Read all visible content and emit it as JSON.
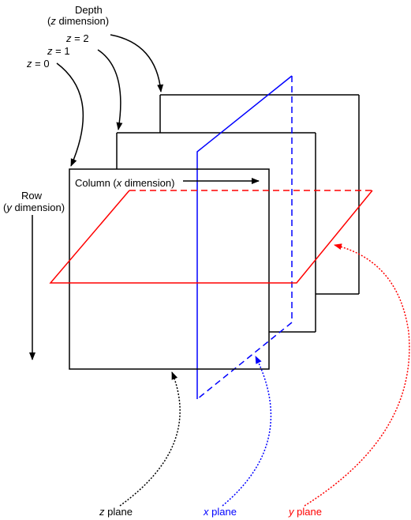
{
  "depth_label": {
    "title": "Depth",
    "paren_open": "(",
    "var": "z",
    "rest": " dimension)"
  },
  "z_values": [
    {
      "var": "z",
      "text": " = 2"
    },
    {
      "var": "z",
      "text": " = 1"
    },
    {
      "var": "z",
      "text": " = 0"
    }
  ],
  "row_label": {
    "title": "Row",
    "paren_open": "(",
    "var": "y",
    "rest": " dimension)"
  },
  "column_label": {
    "prefix": "Column (",
    "var": "x",
    "rest": " dimension)"
  },
  "plane_labels": [
    {
      "var": "z",
      "text": " plane",
      "color": "#000000"
    },
    {
      "var": "x",
      "text": " plane",
      "color": "#0000ff"
    },
    {
      "var": "y",
      "text": " plane",
      "color": "#ff0000"
    }
  ],
  "colors": {
    "z_plane": "#000000",
    "x_plane": "#0000ff",
    "y_plane": "#ff0000"
  }
}
